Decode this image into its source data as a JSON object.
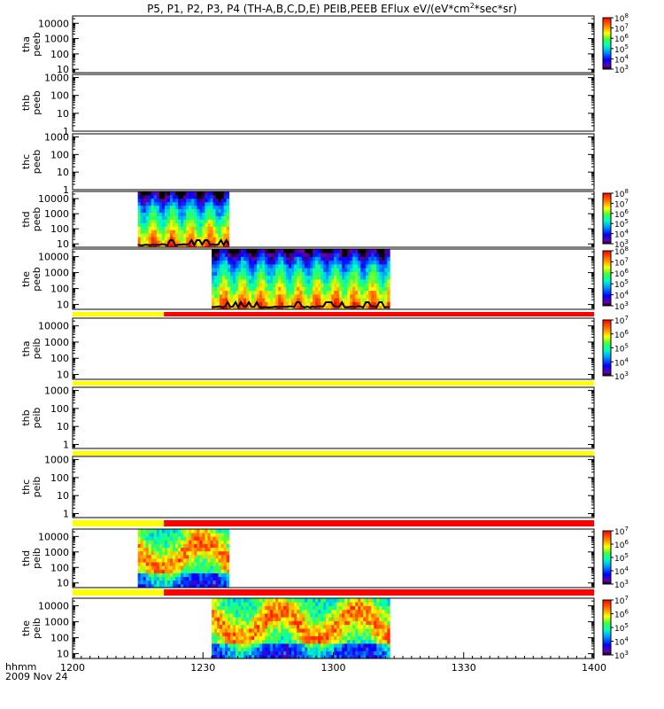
{
  "chart_data": {
    "type": "heatmap",
    "title": "P5, P1, P2, P3, P4 (TH-A,B,C,D,E) PEIB,PEEB EFlux eV/(eV*cm2*sec*sr)",
    "title_parts": {
      "main": "P5, P1, P2, P3, P4 (TH-A,B,C,D,E) PEIB,PEEB EFlux eV/(eV*cm",
      "superscript": "2",
      "tail": "*sec*sr)"
    },
    "x_axis": {
      "label": "hhmm",
      "date": "2009 Nov 24",
      "ticks": [
        "1200",
        "1230",
        "1300",
        "1330",
        "1400"
      ],
      "range": [
        "12:00",
        "14:00"
      ]
    },
    "panels": [
      {
        "name": "thapeeb",
        "label_top": "tha",
        "label_bottom": "peeb",
        "yticks": [
          {
            "v": 10,
            "t": "10"
          },
          {
            "v": 100,
            "t": "100"
          },
          {
            "v": 1000,
            "t": "1000"
          },
          {
            "v": 10000,
            "t": "10000"
          }
        ],
        "yrange": [
          6,
          30000
        ],
        "has_data": false,
        "colorbar": {
          "exp_min": 3,
          "exp_max": 8
        }
      },
      {
        "name": "thbpeeb",
        "label_top": "thb",
        "label_bottom": "peeb",
        "yticks": [
          {
            "v": 1,
            "t": "1"
          },
          {
            "v": 10,
            "t": "10"
          },
          {
            "v": 100,
            "t": "100"
          },
          {
            "v": 1000,
            "t": "1000"
          }
        ],
        "yrange": [
          1,
          1500
        ],
        "has_data": false
      },
      {
        "name": "thcpeeb",
        "label_top": "thc",
        "label_bottom": "peeb",
        "yticks": [
          {
            "v": 1,
            "t": "1"
          },
          {
            "v": 10,
            "t": "10"
          },
          {
            "v": 100,
            "t": "100"
          },
          {
            "v": 1000,
            "t": "1000"
          }
        ],
        "yrange": [
          1,
          1500
        ],
        "has_data": false
      },
      {
        "name": "thdpeeb",
        "label_top": "thd",
        "label_bottom": "peeb",
        "yticks": [
          {
            "v": 10,
            "t": "10"
          },
          {
            "v": 100,
            "t": "100"
          },
          {
            "v": 1000,
            "t": "1000"
          },
          {
            "v": 10000,
            "t": "10000"
          }
        ],
        "yrange": [
          6,
          30000
        ],
        "has_data": true,
        "data_start": "12:15",
        "data_end": "12:36",
        "potential_line": true,
        "colorbar": {
          "exp_min": 3,
          "exp_max": 8
        }
      },
      {
        "name": "thepeeb",
        "label_top": "the",
        "label_bottom": "peeb",
        "yticks": [
          {
            "v": 10,
            "t": "10"
          },
          {
            "v": 100,
            "t": "100"
          },
          {
            "v": 1000,
            "t": "1000"
          },
          {
            "v": 10000,
            "t": "10000"
          }
        ],
        "yrange": [
          5,
          30000
        ],
        "has_data": true,
        "data_start": "12:32",
        "data_end": "13:13",
        "potential_line": true,
        "colorbar": {
          "exp_min": 3,
          "exp_max": 8
        }
      },
      {
        "name": "thapeib",
        "label_top": "tha",
        "label_bottom": "peib",
        "yticks": [
          {
            "v": 10,
            "t": "10"
          },
          {
            "v": 100,
            "t": "100"
          },
          {
            "v": 1000,
            "t": "1000"
          },
          {
            "v": 10000,
            "t": "10000"
          }
        ],
        "yrange": [
          5,
          30000
        ],
        "has_data": false,
        "colorbar": {
          "exp_min": 3,
          "exp_max": 7
        }
      },
      {
        "name": "thbpeib",
        "label_top": "thb",
        "label_bottom": "peib",
        "yticks": [
          {
            "v": 1,
            "t": "1"
          },
          {
            "v": 10,
            "t": "10"
          },
          {
            "v": 100,
            "t": "100"
          },
          {
            "v": 1000,
            "t": "1000"
          }
        ],
        "yrange": [
          0.6,
          1500
        ],
        "has_data": false
      },
      {
        "name": "thcpeib",
        "label_top": "thc",
        "label_bottom": "peib",
        "yticks": [
          {
            "v": 1,
            "t": "1"
          },
          {
            "v": 10,
            "t": "10"
          },
          {
            "v": 100,
            "t": "100"
          },
          {
            "v": 1000,
            "t": "1000"
          }
        ],
        "yrange": [
          0.6,
          1500
        ],
        "has_data": false
      },
      {
        "name": "thdpeib",
        "label_top": "thd",
        "label_bottom": "peib",
        "yticks": [
          {
            "v": 10,
            "t": "10"
          },
          {
            "v": 100,
            "t": "100"
          },
          {
            "v": 1000,
            "t": "1000"
          },
          {
            "v": 10000,
            "t": "10000"
          }
        ],
        "yrange": [
          5,
          30000
        ],
        "has_data": true,
        "data_start": "12:15",
        "data_end": "12:36",
        "potential_line": false,
        "colorbar": {
          "exp_min": 3,
          "exp_max": 7
        }
      },
      {
        "name": "thepeib",
        "label_top": "the",
        "label_bottom": "peib",
        "yticks": [
          {
            "v": 10,
            "t": "10"
          },
          {
            "v": 100,
            "t": "100"
          },
          {
            "v": 1000,
            "t": "1000"
          },
          {
            "v": 10000,
            "t": "10000"
          }
        ],
        "yrange": [
          5,
          30000
        ],
        "has_data": true,
        "data_start": "12:32",
        "data_end": "13:13",
        "potential_line": false,
        "colorbar": {
          "exp_min": 3,
          "exp_max": 7
        }
      }
    ],
    "mode_bars": [
      {
        "after_panel": 4,
        "segments": [
          {
            "start": "12:00",
            "end": "12:21",
            "color": "#ffff00"
          },
          {
            "start": "12:21",
            "end": "14:00",
            "color": "#ff0000"
          }
        ]
      },
      {
        "after_panel": 5,
        "segments": [
          {
            "start": "12:00",
            "end": "14:00",
            "color": "#ffff00"
          }
        ]
      },
      {
        "after_panel": 6,
        "segments": [
          {
            "start": "12:00",
            "end": "14:00",
            "color": "#ffff00"
          }
        ]
      },
      {
        "after_panel": 7,
        "segments": [
          {
            "start": "12:00",
            "end": "12:21",
            "color": "#ffff00"
          },
          {
            "start": "12:21",
            "end": "14:00",
            "color": "#ff0000"
          }
        ]
      },
      {
        "after_panel": 8,
        "segments": [
          {
            "start": "12:00",
            "end": "12:21",
            "color": "#ffff00"
          },
          {
            "start": "12:21",
            "end": "14:00",
            "color": "#ff0000"
          }
        ]
      }
    ]
  }
}
